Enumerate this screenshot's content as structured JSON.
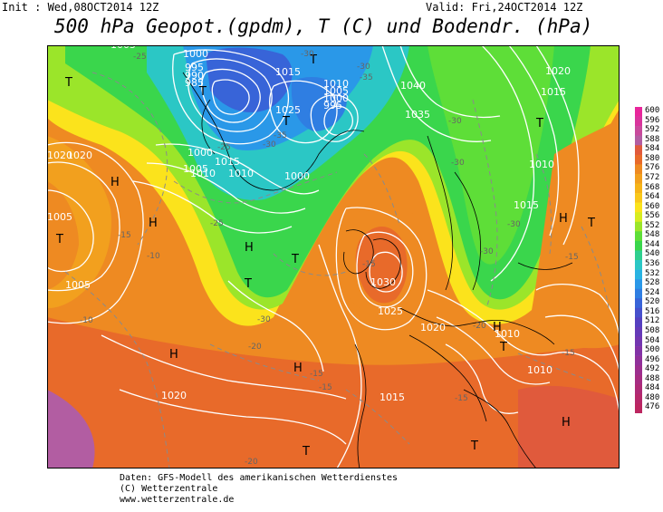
{
  "header": {
    "init": "Init : Wed,08OCT2014 12Z",
    "valid": "Valid: Fri,24OCT2014 12Z",
    "title": "500 hPa Geopot.(gpdm), T (C) und Bodendr. (hPa)"
  },
  "colorbar": {
    "labels": [
      "600",
      "596",
      "592",
      "588",
      "584",
      "580",
      "576",
      "572",
      "568",
      "564",
      "560",
      "556",
      "552",
      "548",
      "544",
      "540",
      "536",
      "532",
      "528",
      "524",
      "520",
      "516",
      "512",
      "508",
      "504",
      "500",
      "496",
      "492",
      "488",
      "484",
      "480",
      "476"
    ],
    "colors": [
      "#e8269b",
      "#d9349c",
      "#c84a9c",
      "#b25da2",
      "#e05a3c",
      "#e86a2a",
      "#ee8a22",
      "#f2a01e",
      "#f6b418",
      "#f9c81a",
      "#fbe31c",
      "#d7ec20",
      "#9be52a",
      "#5ede38",
      "#3ad64c",
      "#2fcf8f",
      "#2bc7c5",
      "#29b3e2",
      "#2a98e8",
      "#2f7ee2",
      "#3864d8",
      "#4650cc",
      "#5540c0",
      "#653ab8",
      "#7336b0",
      "#8232a6",
      "#90309a",
      "#9c2e8e",
      "#a62c82",
      "#ae2a76",
      "#b6286a",
      "#bc2660"
    ]
  },
  "map": {
    "highs": [
      "H",
      "H",
      "H",
      "H",
      "H",
      "H",
      "H",
      "H"
    ],
    "lows": [
      "T",
      "T",
      "T",
      "T",
      "T",
      "T",
      "T",
      "T",
      "T",
      "T",
      "T",
      "T"
    ],
    "isobars": [
      "1020",
      "1005",
      "1000",
      "995",
      "990",
      "985",
      "1015",
      "1025",
      "1010",
      "1005",
      "1000",
      "995",
      "1015",
      "1010",
      "1005",
      "1000",
      "1010",
      "1000",
      "1040",
      "1035",
      "1020",
      "1015",
      "1010",
      "1015",
      "1020",
      "1030",
      "1025",
      "1020",
      "1010",
      "1015",
      "1020",
      "1010",
      "1005",
      "1005"
    ],
    "temps": [
      "-25",
      "-30",
      "-35",
      "-30",
      "-30",
      "-35",
      "-30",
      "-30",
      "-30",
      "-30",
      "-25",
      "-25",
      "-30",
      "-15",
      "-15",
      "-15",
      "-20",
      "-15",
      "-20",
      "-15",
      "-10",
      "-10",
      "-15",
      "-15",
      "-20"
    ]
  },
  "footer": {
    "line1": "Daten: GFS-Modell des amerikanischen Wetterdienstes",
    "line2": "(C) Wetterzentrale",
    "line3": "www.wetterzentrale.de"
  }
}
